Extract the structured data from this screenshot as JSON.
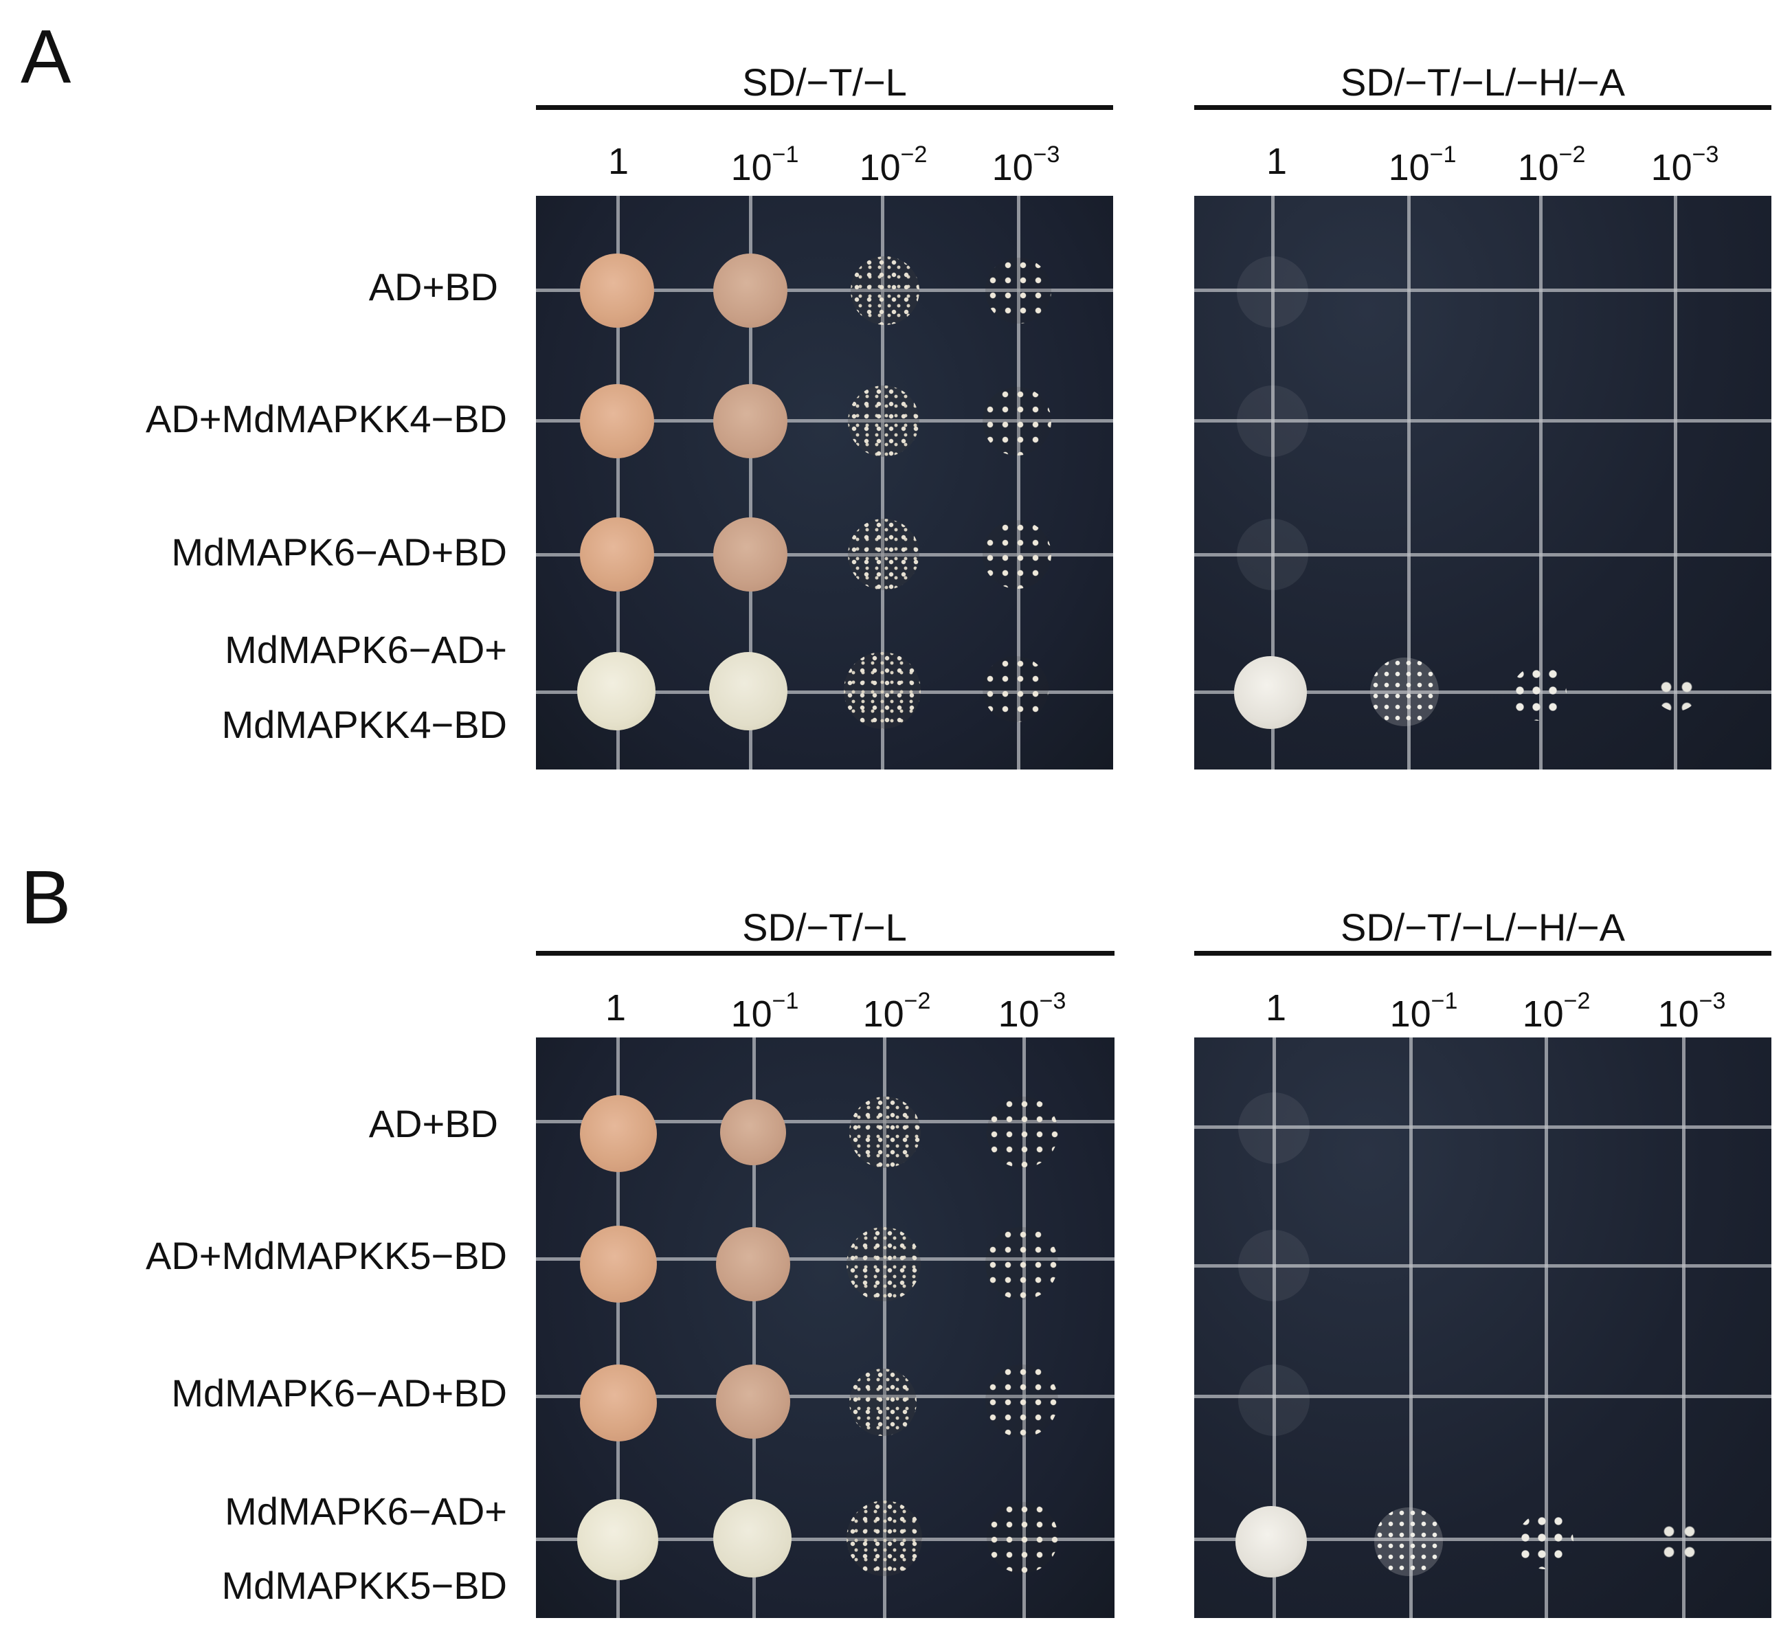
{
  "panels": [
    {
      "letter": "A",
      "media": [
        {
          "name": "SD/−T/−L",
          "dilutions": [
            "1",
            "10−1",
            "10−2",
            "10−3"
          ]
        },
        {
          "name": "SD/−T/−L/−H/−A",
          "dilutions": [
            "1",
            "10−1",
            "10−2",
            "10−3"
          ]
        }
      ],
      "rows": [
        {
          "label_line1": "AD+BD",
          "label_line2": ""
        },
        {
          "label_line1": "AD+MdMAPKK4−BD",
          "label_line2": ""
        },
        {
          "label_line1": "MdMAPK6−AD+BD",
          "label_line2": ""
        },
        {
          "label_line1": "MdMAPK6−AD+",
          "label_line2": "MdMAPKK4−BD"
        }
      ]
    },
    {
      "letter": "B",
      "media": [
        {
          "name": "SD/−T/−L",
          "dilutions": [
            "1",
            "10−1",
            "10−2",
            "10−3"
          ]
        },
        {
          "name": "SD/−T/−L/−H/−A",
          "dilutions": [
            "1",
            "10−1",
            "10−2",
            "10−3"
          ]
        }
      ],
      "rows": [
        {
          "label_line1": "AD+BD",
          "label_line2": ""
        },
        {
          "label_line1": "AD+MdMAPKK5−BD",
          "label_line2": ""
        },
        {
          "label_line1": "MdMAPK6−AD+BD",
          "label_line2": ""
        },
        {
          "label_line1": "MdMAPK6−AD+",
          "label_line2": "MdMAPKK5−BD"
        }
      ]
    }
  ],
  "dilution_base": "10",
  "dilution_exponents": [
    "−1",
    "−2",
    "−3"
  ]
}
